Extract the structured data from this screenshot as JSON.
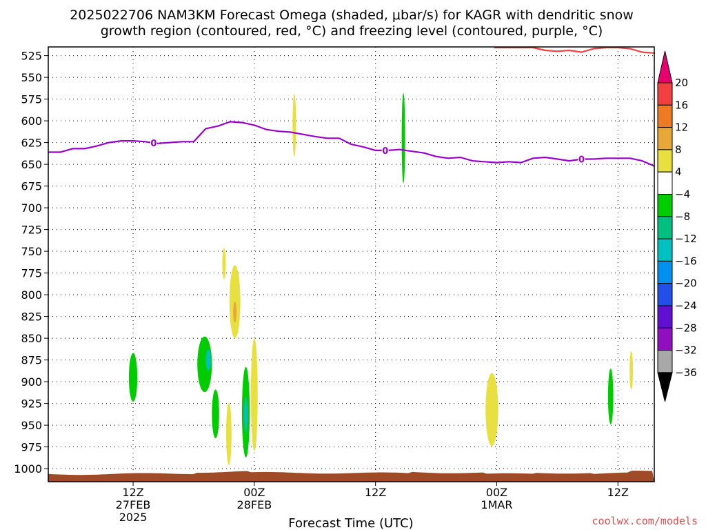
{
  "chart_data": {
    "type": "contour",
    "title_line1": "2025022706 NAM3KM Forecast Omega (shaded, μbar/s) for KAGR with dendritic snow",
    "title_line2": "growth region (contoured, red, °C) and freezing level (contoured, purple, °C)",
    "xlabel": "Forecast Time (UTC)",
    "credit": "coolwx.com/models",
    "x_range_hours": [
      -7,
      43
    ],
    "y_range_hpa": [
      515,
      1015
    ],
    "y_ticks": [
      525,
      550,
      575,
      600,
      625,
      650,
      675,
      700,
      725,
      750,
      775,
      800,
      825,
      850,
      875,
      900,
      925,
      950,
      975,
      1000
    ],
    "x_ticks": [
      {
        "hour": 0,
        "labels": [
          "12Z",
          "27FEB",
          "2025"
        ]
      },
      {
        "hour": 10,
        "labels": [
          "00Z",
          "28FEB"
        ]
      },
      {
        "hour": 20,
        "labels": [
          "12Z"
        ]
      },
      {
        "hour": 30,
        "labels": [
          "00Z",
          "1MAR"
        ]
      },
      {
        "hour": 40,
        "labels": [
          "12Z"
        ]
      }
    ],
    "colorbar": {
      "labels": [
        "20",
        "16",
        "12",
        "8",
        "4",
        "−4",
        "−8",
        "−12",
        "−16",
        "−20",
        "−24",
        "−28",
        "−32",
        "−36"
      ],
      "colors": [
        "#e8006e",
        "#f04040",
        "#ee7a24",
        "#e8a838",
        "#e8e040",
        "#ffffff",
        "#00cc00",
        "#00c080",
        "#00c0c0",
        "#0090f0",
        "#2050e8",
        "#6010d0",
        "#9010c0",
        "#a8a8a8",
        "#000000"
      ]
    },
    "freezing_level": {
      "label": "0",
      "color": "#9900cc",
      "points": [
        [
          -7,
          636
        ],
        [
          -6,
          636
        ],
        [
          -5,
          632
        ],
        [
          -4,
          632
        ],
        [
          -3,
          629
        ],
        [
          -2,
          625
        ],
        [
          -1,
          623
        ],
        [
          0,
          623
        ],
        [
          1,
          624
        ],
        [
          2,
          626
        ],
        [
          3,
          625
        ],
        [
          4,
          624
        ],
        [
          5,
          624
        ],
        [
          6,
          609
        ],
        [
          7,
          606
        ],
        [
          8,
          601
        ],
        [
          9,
          602
        ],
        [
          10,
          605
        ],
        [
          11,
          610
        ],
        [
          12,
          612
        ],
        [
          13,
          613
        ],
        [
          15,
          618
        ],
        [
          16,
          620
        ],
        [
          17,
          620
        ],
        [
          18,
          627
        ],
        [
          19,
          630
        ],
        [
          20,
          634
        ],
        [
          21,
          634
        ],
        [
          22,
          633
        ],
        [
          23,
          635
        ],
        [
          24,
          637
        ],
        [
          25,
          641
        ],
        [
          26,
          643
        ],
        [
          27,
          642
        ],
        [
          28,
          646
        ],
        [
          29,
          647
        ],
        [
          30,
          648
        ],
        [
          31,
          647
        ],
        [
          32,
          648
        ],
        [
          33,
          643
        ],
        [
          34,
          642
        ],
        [
          35,
          644
        ],
        [
          36,
          646
        ],
        [
          37,
          644
        ],
        [
          38,
          644
        ],
        [
          39,
          643
        ],
        [
          40,
          643
        ],
        [
          41,
          643
        ],
        [
          42,
          646
        ],
        [
          43,
          652
        ]
      ],
      "label_hours": [
        1.7,
        20.8,
        37.0
      ]
    },
    "dgz_top": {
      "color": "#f04040",
      "points": [
        [
          29.8,
          512
        ],
        [
          30,
          515
        ],
        [
          32,
          513
        ],
        [
          33,
          515
        ],
        [
          34,
          519
        ],
        [
          35,
          520
        ],
        [
          36,
          519
        ],
        [
          37,
          521
        ],
        [
          38,
          517
        ],
        [
          39,
          513
        ],
        [
          40,
          512
        ],
        [
          41,
          517
        ],
        [
          42,
          521
        ],
        [
          43,
          522
        ]
      ]
    },
    "terrain_fill_color": "#a04a28",
    "omega_blobs": [
      {
        "hour": 0.0,
        "p_center": 895,
        "p_half": 28,
        "h_half": 0.35,
        "value": -6
      },
      {
        "hour": 5.9,
        "p_center": 880,
        "p_half": 32,
        "h_half": 0.6,
        "value": -6
      },
      {
        "hour": 6.2,
        "p_center": 875,
        "p_half": 12,
        "h_half": 0.2,
        "value": -12
      },
      {
        "hour": 6.8,
        "p_center": 937,
        "p_half": 28,
        "h_half": 0.3,
        "value": -6
      },
      {
        "hour": 7.5,
        "p_center": 764,
        "p_half": 18,
        "h_half": 0.1,
        "value": 6
      },
      {
        "hour": 7.9,
        "p_center": 960,
        "p_half": 36,
        "h_half": 0.22,
        "value": 6
      },
      {
        "hour": 8.4,
        "p_center": 808,
        "p_half": 42,
        "h_half": 0.45,
        "value": 6
      },
      {
        "hour": 8.4,
        "p_center": 820,
        "p_half": 12,
        "h_half": 0.12,
        "value": 10
      },
      {
        "hour": 9.3,
        "p_center": 935,
        "p_half": 52,
        "h_half": 0.32,
        "value": -6
      },
      {
        "hour": 9.3,
        "p_center": 938,
        "p_half": 20,
        "h_half": 0.12,
        "value": -12
      },
      {
        "hour": 10.0,
        "p_center": 915,
        "p_half": 65,
        "h_half": 0.28,
        "value": 6
      },
      {
        "hour": 13.3,
        "p_center": 605,
        "p_half": 36,
        "h_half": 0.12,
        "value": 6
      },
      {
        "hour": 22.3,
        "p_center": 620,
        "p_half": 52,
        "h_half": 0.12,
        "value": -6
      },
      {
        "hour": 29.6,
        "p_center": 932,
        "p_half": 42,
        "h_half": 0.52,
        "value": 6
      },
      {
        "hour": 39.4,
        "p_center": 917,
        "p_half": 32,
        "h_half": 0.22,
        "value": -6
      },
      {
        "hour": 41.1,
        "p_center": 887,
        "p_half": 22,
        "h_half": 0.1,
        "value": 6
      }
    ],
    "grid": true
  }
}
